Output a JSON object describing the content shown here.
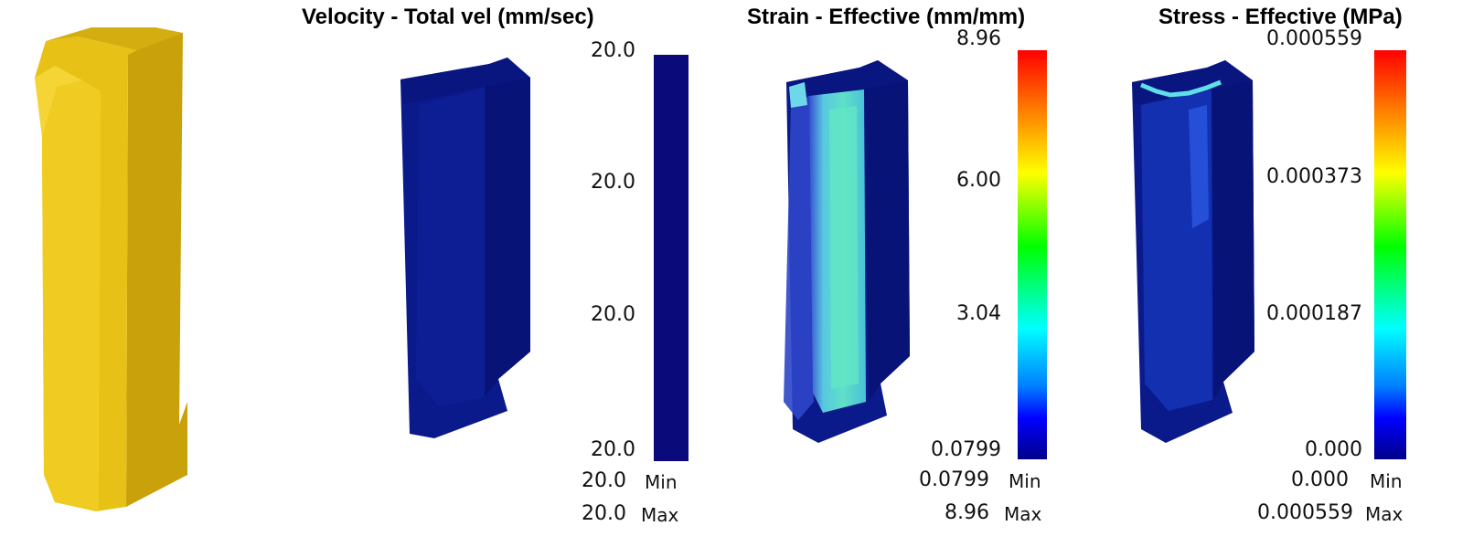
{
  "panels": [
    {
      "title": "",
      "legend": null
    },
    {
      "title": "Velocity - Total vel (mm/sec)",
      "legend": {
        "ticks": [
          "20.0",
          "20.0",
          "20.0",
          "20.0"
        ],
        "min_value": "20.0",
        "max_value": "20.0",
        "min_label": "Min",
        "max_label": "Max",
        "colormap": "uniform-dark-blue"
      }
    },
    {
      "title": "Strain - Effective (mm/mm)",
      "legend": {
        "ticks": [
          "8.96",
          "6.00",
          "3.04",
          "0.0799"
        ],
        "min_value": "0.0799",
        "max_value": "8.96",
        "min_label": "Min",
        "max_label": "Max",
        "colormap": "rainbow"
      }
    },
    {
      "title": "Stress - Effective (MPa)",
      "legend": {
        "ticks": [
          "0.000559",
          "0.000373",
          "0.000187",
          "0.000"
        ],
        "min_value": "0.000",
        "max_value": "0.000559",
        "min_label": "Min",
        "max_label": "Max",
        "colormap": "rainbow"
      }
    }
  ],
  "colors": {
    "part_gold": "#e8c117",
    "part_dark_blue": "#0b1a8a",
    "scale_dark_blue": "#0a0a7a"
  }
}
